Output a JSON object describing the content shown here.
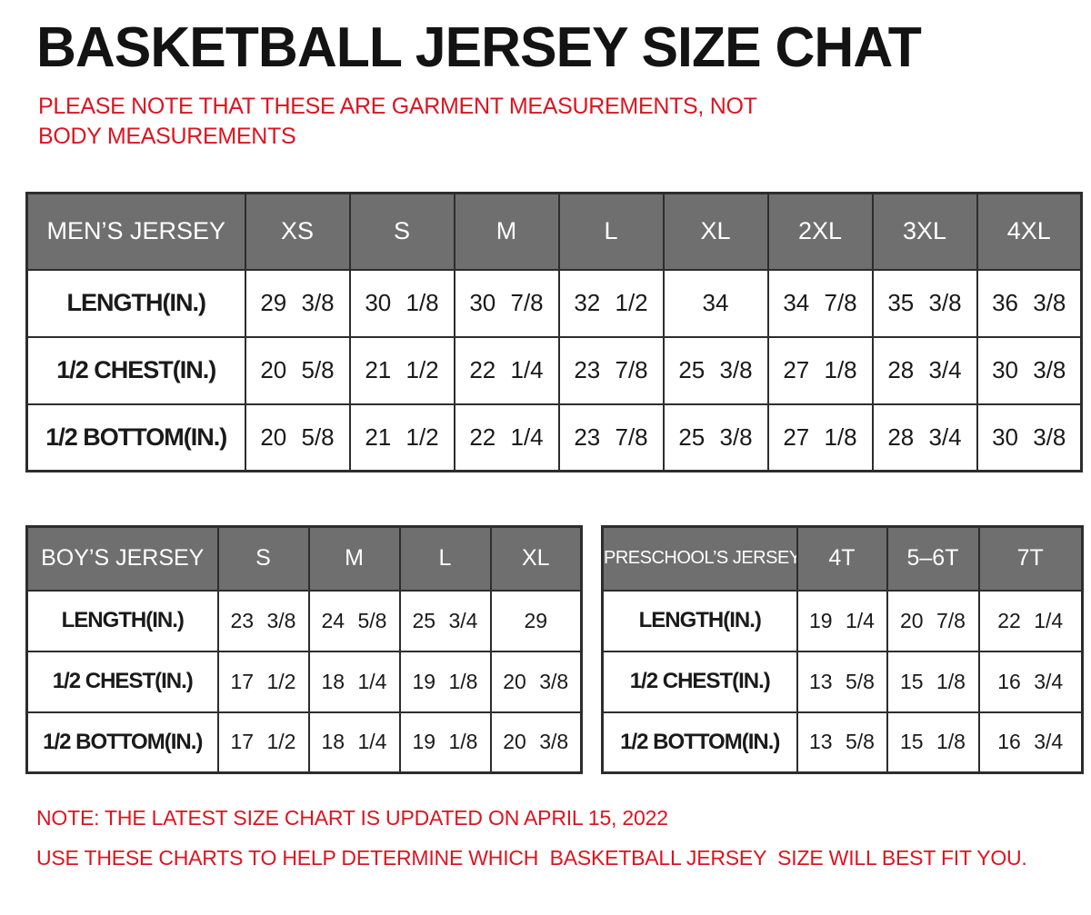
{
  "page": {
    "title": "BASKETBALL JERSEY SIZE CHAT",
    "subtitle": "PLEASE NOTE THAT THESE ARE GARMENT MEASUREMENTS, NOT BODY MEASUREMENTS",
    "notes": [
      "NOTE: THE LATEST SIZE CHART IS UPDATED ON APRIL 15, 2022",
      "USE THESE CHARTS TO HELP DETERMINE WHICH  BASKETBALL JERSEY  SIZE WILL BEST FIT YOU."
    ],
    "colors": {
      "accent_red": "#dd1420",
      "header_gray": "#6f6f6f",
      "border_dark": "#2d2d2d",
      "text_black": "#131313",
      "header_text": "#ffffff",
      "background": "#ffffff"
    }
  },
  "chart_data": [
    {
      "type": "table",
      "title": "MEN’S JERSEY",
      "header": [
        "MEN’S JERSEY",
        "XS",
        "S",
        "M",
        "L",
        "XL",
        "2XL",
        "3XL",
        "4XL"
      ],
      "rows": [
        {
          "label": "LENGTH(IN.)",
          "values": [
            "29 3/8",
            "30 1/8",
            "30 7/8",
            "32 1/2",
            "34",
            "34 7/8",
            "35 3/8",
            "36 3/8"
          ]
        },
        {
          "label": "1/2 CHEST(IN.)",
          "values": [
            "20 5/8",
            "21 1/2",
            "22 1/4",
            "23 7/8",
            "25 3/8",
            "27 1/8",
            "28 3/4",
            "30 3/8"
          ]
        },
        {
          "label": "1/2 BOTTOM(IN.)",
          "values": [
            "20 5/8",
            "21 1/2",
            "22 1/4",
            "23 7/8",
            "25 3/8",
            "27 1/8",
            "28 3/4",
            "30 3/8"
          ]
        }
      ]
    },
    {
      "type": "table",
      "title": "BOY’S JERSEY",
      "header": [
        "BOY’S JERSEY",
        "S",
        "M",
        "L",
        "XL"
      ],
      "rows": [
        {
          "label": "LENGTH(IN.)",
          "values": [
            "23 3/8",
            "24 5/8",
            "25 3/4",
            "29"
          ]
        },
        {
          "label": "1/2 CHEST(IN.)",
          "values": [
            "17 1/2",
            "18 1/4",
            "19 1/8",
            "20 3/8"
          ]
        },
        {
          "label": "1/2 BOTTOM(IN.)",
          "values": [
            "17 1/2",
            "18 1/4",
            "19 1/8",
            "20 3/8"
          ]
        }
      ]
    },
    {
      "type": "table",
      "title": "PRESCHOOL’S JERSEY",
      "header": [
        "PRESCHOOL’S JERSEY",
        "4T",
        "5–6T",
        "7T"
      ],
      "rows": [
        {
          "label": "LENGTH(IN.)",
          "values": [
            "19 1/4",
            "20 7/8",
            "22 1/4"
          ]
        },
        {
          "label": "1/2 CHEST(IN.)",
          "values": [
            "13 5/8",
            "15 1/8",
            "16 3/4"
          ]
        },
        {
          "label": "1/2 BOTTOM(IN.)",
          "values": [
            "13 5/8",
            "15 1/8",
            "16 3/4"
          ]
        }
      ]
    }
  ]
}
